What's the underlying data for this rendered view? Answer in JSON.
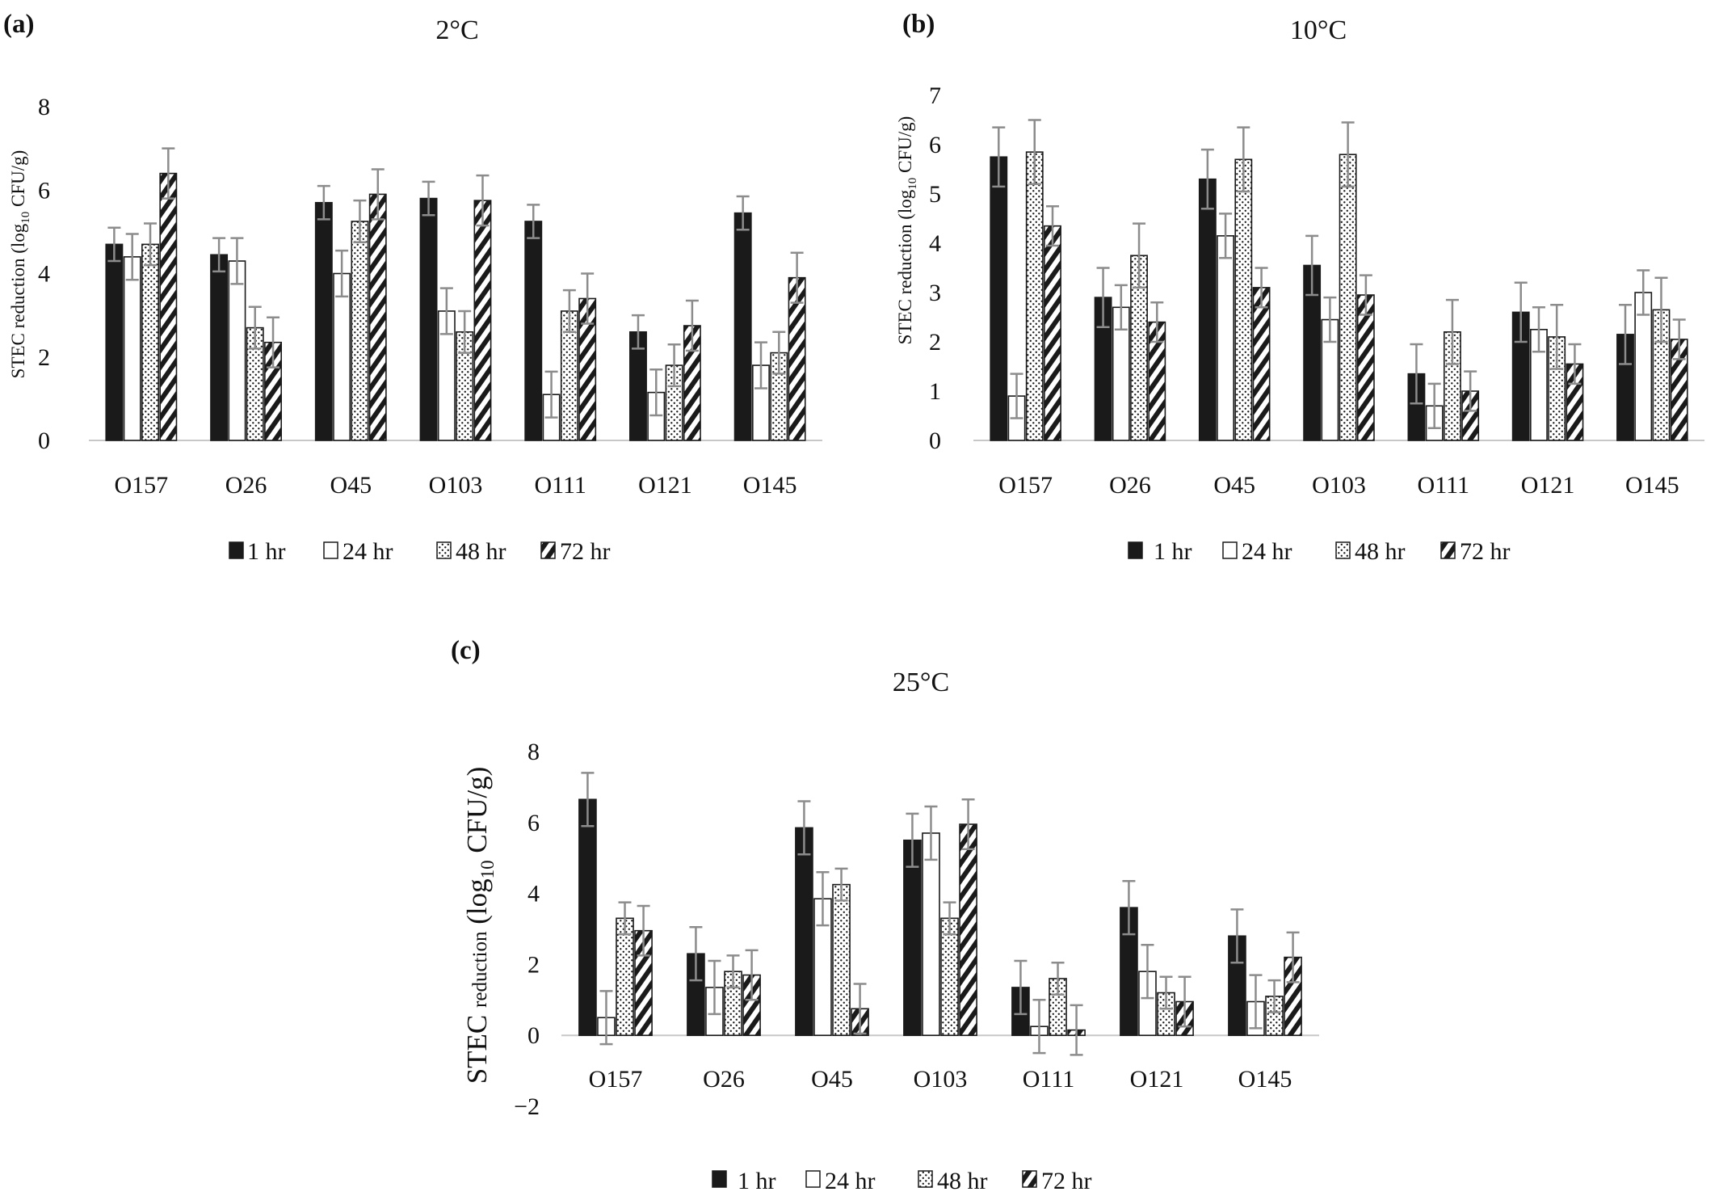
{
  "panels": [
    {
      "letter": "(a)"
    },
    {
      "letter": "(b)"
    },
    {
      "letter": "(c)"
    }
  ],
  "colors": {
    "bar_dark": "#1a1a1a",
    "outline": "#1a1a1a",
    "error_bar": "#8c8c8c",
    "axis": "#c8c8c8"
  },
  "chart_data": [
    {
      "type": "bar",
      "title": "2°C",
      "ylabel": "STEC reduction (log10 CFU/g)",
      "categories": [
        "O157",
        "O26",
        "O45",
        "O103",
        "O111",
        "O121",
        "O145"
      ],
      "yticks": [
        0,
        2,
        4,
        6,
        8
      ],
      "ylim": [
        0,
        8
      ],
      "series": [
        {
          "name": "1 hr",
          "pattern": "solid",
          "values": [
            4.7,
            4.45,
            5.7,
            5.8,
            5.25,
            2.6,
            5.45
          ],
          "errors": [
            0.4,
            0.4,
            0.4,
            0.4,
            0.4,
            0.4,
            0.4
          ]
        },
        {
          "name": "24 hr",
          "pattern": "open",
          "values": [
            4.4,
            4.3,
            4.0,
            3.1,
            1.1,
            1.15,
            1.8
          ],
          "errors": [
            0.55,
            0.55,
            0.55,
            0.55,
            0.55,
            0.55,
            0.55
          ]
        },
        {
          "name": "48 hr",
          "pattern": "dots",
          "values": [
            4.7,
            2.7,
            5.25,
            2.6,
            3.1,
            1.8,
            2.1
          ],
          "errors": [
            0.5,
            0.5,
            0.5,
            0.5,
            0.5,
            0.5,
            0.5
          ]
        },
        {
          "name": "72 hr",
          "pattern": "hatch",
          "values": [
            6.4,
            2.35,
            5.9,
            5.75,
            3.4,
            2.75,
            3.9
          ],
          "errors": [
            0.6,
            0.6,
            0.6,
            0.6,
            0.6,
            0.6,
            0.6
          ]
        }
      ],
      "legend": "bottom"
    },
    {
      "type": "bar",
      "title": "10°C",
      "ylabel": "STEC reduction (log10 CFU/g)",
      "categories": [
        "O157",
        "O26",
        "O45",
        "O103",
        "O111",
        "O121",
        "O145"
      ],
      "yticks": [
        0,
        1,
        2,
        3,
        4,
        5,
        6,
        7
      ],
      "ylim": [
        0,
        7
      ],
      "series": [
        {
          "name": "1 hr",
          "pattern": "solid",
          "values": [
            5.75,
            2.9,
            5.3,
            3.55,
            1.35,
            2.6,
            2.15
          ],
          "errors": [
            0.6,
            0.6,
            0.6,
            0.6,
            0.6,
            0.6,
            0.6
          ]
        },
        {
          "name": "24 hr",
          "pattern": "open",
          "values": [
            0.9,
            2.7,
            4.15,
            2.45,
            0.7,
            2.25,
            3.0
          ],
          "errors": [
            0.45,
            0.45,
            0.45,
            0.45,
            0.45,
            0.45,
            0.45
          ]
        },
        {
          "name": "48 hr",
          "pattern": "dots",
          "values": [
            5.85,
            3.75,
            5.7,
            5.8,
            2.2,
            2.1,
            2.65
          ],
          "errors": [
            0.65,
            0.65,
            0.65,
            0.65,
            0.65,
            0.65,
            0.65
          ]
        },
        {
          "name": "72 hr",
          "pattern": "hatch",
          "values": [
            4.35,
            2.4,
            3.1,
            2.95,
            1.0,
            1.55,
            2.05
          ],
          "errors": [
            0.4,
            0.4,
            0.4,
            0.4,
            0.4,
            0.4,
            0.4
          ]
        }
      ],
      "legend": "bottom"
    },
    {
      "type": "bar",
      "title": "25°C",
      "ylabel": "STEC reduction (log10 CFU/g)",
      "categories": [
        "O157",
        "O26",
        "O45",
        "O103",
        "O111",
        "O121",
        "O145"
      ],
      "yticks": [
        -2,
        0,
        2,
        4,
        6,
        8
      ],
      "ylim": [
        -2,
        8
      ],
      "series": [
        {
          "name": "1 hr",
          "pattern": "solid",
          "values": [
            6.65,
            2.3,
            5.85,
            5.5,
            1.35,
            3.6,
            2.8
          ],
          "errors": [
            0.75,
            0.75,
            0.75,
            0.75,
            0.75,
            0.75,
            0.75
          ]
        },
        {
          "name": "24 hr",
          "pattern": "open",
          "values": [
            0.5,
            1.35,
            3.85,
            5.7,
            0.25,
            1.8,
            0.95
          ],
          "errors": [
            0.75,
            0.75,
            0.75,
            0.75,
            0.75,
            0.75,
            0.75
          ]
        },
        {
          "name": "48 hr",
          "pattern": "dots",
          "values": [
            3.3,
            1.8,
            4.25,
            3.3,
            1.6,
            1.2,
            1.1
          ],
          "errors": [
            0.45,
            0.45,
            0.45,
            0.45,
            0.45,
            0.45,
            0.45
          ]
        },
        {
          "name": "72 hr",
          "pattern": "hatch",
          "values": [
            2.95,
            1.7,
            0.75,
            5.95,
            0.15,
            0.95,
            2.2
          ],
          "errors": [
            0.7,
            0.7,
            0.7,
            0.7,
            0.7,
            0.7,
            0.7
          ]
        }
      ],
      "legend": "bottom"
    }
  ]
}
